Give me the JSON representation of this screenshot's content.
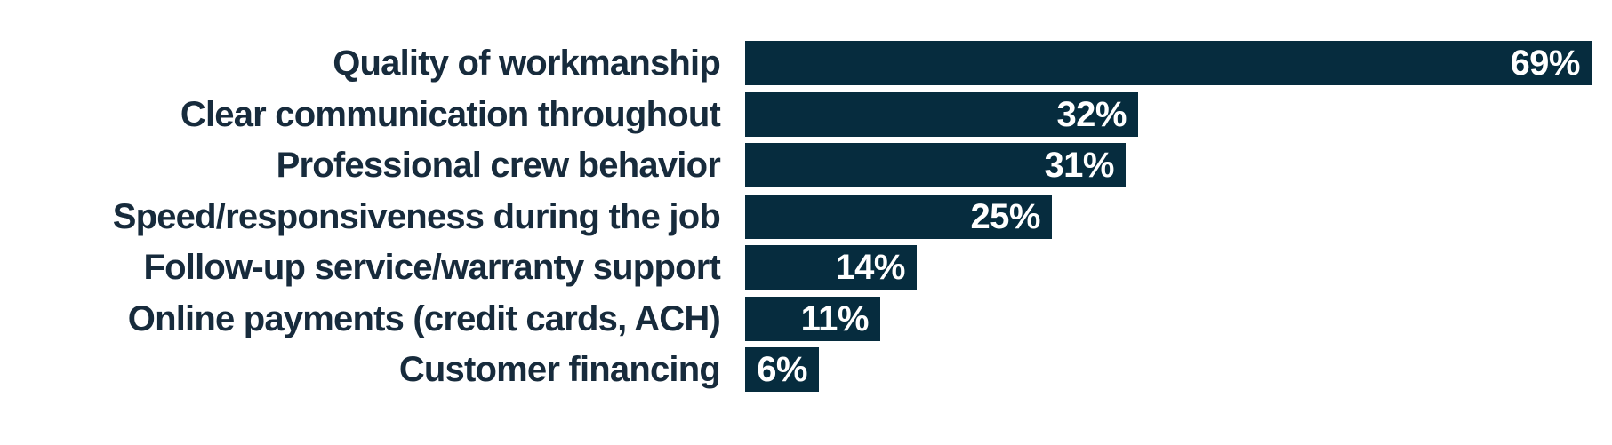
{
  "page": {
    "background_color": "#ffffff"
  },
  "chart_data": {
    "type": "bar",
    "orientation": "horizontal",
    "title": "",
    "xlabel": "",
    "ylabel": "",
    "categories": [
      "Quality of workmanship",
      "Clear communication throughout",
      "Professional crew behavior",
      "Speed/responsiveness during the job",
      "Follow-up service/warranty support",
      "Online payments (credit cards, ACH)",
      "Customer financing"
    ],
    "values": [
      69,
      32,
      31,
      25,
      14,
      11,
      6
    ],
    "value_labels": [
      "69%",
      "32%",
      "31%",
      "25%",
      "14%",
      "11%",
      "6%"
    ],
    "xlim": [
      0,
      69
    ],
    "grid": false,
    "legend": false,
    "axes_visible": false,
    "bar_color": "#062c3e",
    "category_label_color": "#172b3c",
    "value_label_color": "#ffffff"
  }
}
